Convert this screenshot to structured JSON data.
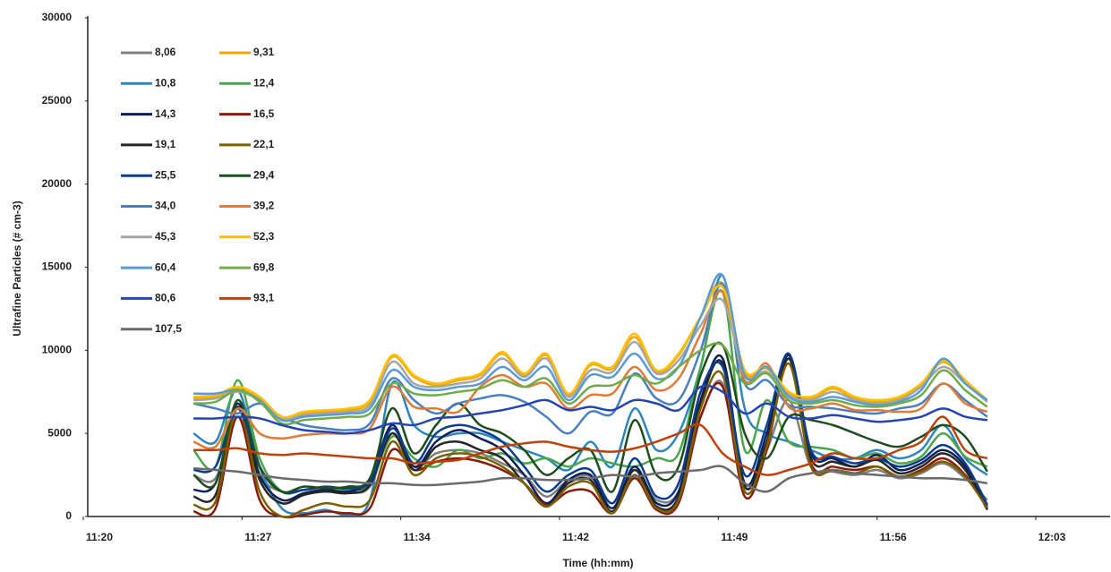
{
  "chart_data": {
    "type": "line",
    "x_label": "Time (hh:mm)",
    "y_label": "Ultrafine Particles (# cm-3)",
    "x": [
      685,
      686,
      687,
      688,
      689,
      690,
      691,
      692,
      693,
      694,
      695,
      696,
      697,
      698,
      699,
      700,
      701,
      702,
      703,
      704,
      705,
      706,
      707,
      708,
      709,
      710,
      711,
      712,
      713,
      714,
      715,
      716,
      717,
      718,
      719,
      720,
      721
    ],
    "xlim": [
      680,
      723.2
    ],
    "xticks": [
      {
        "value": 680,
        "label": "11:20"
      },
      {
        "value": 687.2,
        "label": "11:27"
      },
      {
        "value": 694.4,
        "label": "11:34"
      },
      {
        "value": 701.6,
        "label": "11:42"
      },
      {
        "value": 708.8,
        "label": "11:49"
      },
      {
        "value": 716,
        "label": "11:56"
      },
      {
        "value": 723.2,
        "label": "12:03"
      }
    ],
    "ylim": [
      0,
      30000
    ],
    "yticks": [
      0,
      5000,
      10000,
      15000,
      20000,
      25000,
      30000
    ],
    "grid": false,
    "legend": "upper left",
    "series": [
      {
        "name": "8,06",
        "color": "#7f7f7f",
        "values": [
          2500,
          2300,
          6000,
          2500,
          1500,
          1600,
          1700,
          1500,
          1800,
          5000,
          3000,
          3800,
          4000,
          3800,
          3200,
          2500,
          1200,
          2200,
          2400,
          800,
          2800,
          1000,
          1500,
          6000,
          8000,
          1800,
          4000,
          7000,
          3000,
          2700,
          2500,
          2800,
          2300,
          2600,
          3200,
          2300,
          1000
        ]
      },
      {
        "name": "9,31",
        "color": "#f0a800",
        "values": [
          7100,
          7200,
          7700,
          7100,
          6000,
          6200,
          6300,
          6400,
          6900,
          9600,
          8400,
          7900,
          8200,
          8500,
          9800,
          8500,
          9700,
          7300,
          9100,
          8900,
          10800,
          8700,
          9700,
          12000,
          14000,
          8700,
          8900,
          7400,
          7100,
          7700,
          7100,
          6900,
          7100,
          7900,
          9300,
          8100,
          6900
        ]
      },
      {
        "name": "10,8",
        "color": "#2e86c1",
        "values": [
          5000,
          4500,
          7600,
          3000,
          500,
          200,
          400,
          100,
          1000,
          8000,
          5500,
          4800,
          5000,
          5000,
          4500,
          4000,
          3500,
          2800,
          4500,
          3000,
          6500,
          4000,
          5000,
          9000,
          14500,
          6500,
          5000,
          4500,
          4000,
          3500,
          3500,
          4000,
          3500,
          4000,
          5500,
          3500,
          2500
        ]
      },
      {
        "name": "12,4",
        "color": "#4ca64c",
        "values": [
          4000,
          3000,
          8200,
          3500,
          1500,
          1600,
          1800,
          1600,
          2000,
          4800,
          3500,
          3000,
          4000,
          3500,
          3800,
          3200,
          3500,
          3000,
          3500,
          3200,
          3000,
          3500,
          3800,
          9000,
          13500,
          4000,
          7000,
          4500,
          4200,
          4000,
          3500,
          3800,
          3200,
          3600,
          5000,
          3600,
          3000
        ]
      },
      {
        "name": "14,3",
        "color": "#0b1f5c",
        "values": [
          1600,
          2000,
          6800,
          2500,
          1000,
          1400,
          1600,
          1500,
          2200,
          5500,
          3000,
          4500,
          5200,
          4700,
          4000,
          2500,
          800,
          2200,
          2500,
          500,
          3000,
          800,
          1500,
          7000,
          9500,
          2000,
          5000,
          9700,
          3800,
          3500,
          3000,
          3700,
          2800,
          3200,
          4000,
          3000,
          500
        ]
      },
      {
        "name": "16,5",
        "color": "#8b1a0a",
        "values": [
          300,
          500,
          6000,
          1000,
          0,
          100,
          300,
          200,
          500,
          4000,
          2800,
          3300,
          3500,
          3300,
          2800,
          2000,
          700,
          1500,
          1500,
          200,
          2300,
          400,
          800,
          6000,
          7800,
          1200,
          4000,
          9500,
          3200,
          3000,
          2800,
          3000,
          2400,
          2800,
          3500,
          2500,
          600
        ]
      },
      {
        "name": "19,1",
        "color": "#262626",
        "values": [
          1200,
          1300,
          6600,
          2200,
          800,
          1300,
          1500,
          1400,
          1900,
          5000,
          2800,
          4200,
          4500,
          4000,
          3500,
          2000,
          600,
          2000,
          2200,
          300,
          2800,
          600,
          1200,
          6800,
          9200,
          1800,
          4500,
          9500,
          3500,
          3300,
          3000,
          3400,
          2600,
          3000,
          3800,
          2800,
          400
        ]
      },
      {
        "name": "22,1",
        "color": "#7a6000",
        "values": [
          700,
          900,
          6500,
          1500,
          0,
          400,
          800,
          600,
          1000,
          4500,
          2500,
          3500,
          3800,
          3600,
          3000,
          2000,
          600,
          1800,
          2000,
          200,
          2500,
          500,
          1000,
          6500,
          8500,
          1500,
          4200,
          9200,
          3000,
          2800,
          2600,
          3000,
          2400,
          2700,
          3300,
          2400,
          500
        ]
      },
      {
        "name": "25,5",
        "color": "#0a3d8f",
        "values": [
          2800,
          3000,
          6500,
          3000,
          1500,
          1600,
          1800,
          1700,
          2100,
          5300,
          3200,
          5000,
          5500,
          5200,
          4500,
          3000,
          1500,
          2500,
          2800,
          800,
          3500,
          1200,
          2000,
          7500,
          9000,
          2500,
          5500,
          9800,
          4000,
          3600,
          3200,
          3500,
          3000,
          3400,
          4300,
          3200,
          700
        ]
      },
      {
        "name": "29,4",
        "color": "#1e4d1e",
        "values": [
          2500,
          2000,
          7000,
          3000,
          1500,
          1800,
          1700,
          1800,
          2300,
          6500,
          3800,
          5500,
          6800,
          5500,
          5000,
          4000,
          2500,
          3500,
          4000,
          1500,
          5800,
          2500,
          3000,
          8500,
          10300,
          5000,
          3500,
          6000,
          5800,
          5500,
          5000,
          4500,
          4200,
          4800,
          5500,
          4800,
          2700
        ]
      },
      {
        "name": "34,0",
        "color": "#4a7fc0",
        "values": [
          6800,
          6500,
          6200,
          6800,
          6000,
          5500,
          5300,
          5200,
          5600,
          8300,
          7000,
          6200,
          6800,
          7100,
          7300,
          6900,
          6000,
          5000,
          6300,
          6200,
          8600,
          7100,
          7000,
          10000,
          14000,
          8000,
          8200,
          6700,
          6600,
          6500,
          6300,
          6200,
          6500,
          6800,
          8000,
          7000,
          6000
        ]
      },
      {
        "name": "39,2",
        "color": "#e07b39",
        "values": [
          4500,
          4200,
          6500,
          5000,
          4700,
          4900,
          5000,
          5000,
          5300,
          7800,
          6600,
          6500,
          6300,
          7800,
          8500,
          7800,
          8000,
          6500,
          7300,
          7400,
          9000,
          7600,
          8300,
          11000,
          13500,
          8200,
          9200,
          6600,
          6500,
          6800,
          6400,
          6400,
          6300,
          6500,
          8000,
          6800,
          6300
        ]
      },
      {
        "name": "45,3",
        "color": "#a6a6a6",
        "values": [
          7000,
          7100,
          7500,
          7000,
          5900,
          6100,
          6200,
          6300,
          6700,
          9300,
          8000,
          7800,
          8000,
          8300,
          9500,
          8400,
          9500,
          7200,
          8800,
          8700,
          10500,
          8600,
          9400,
          11500,
          13000,
          8500,
          8700,
          7300,
          7000,
          7500,
          7000,
          6800,
          7000,
          7800,
          9000,
          8000,
          6900
        ]
      },
      {
        "name": "52,3",
        "color": "#ffc000",
        "values": [
          7200,
          7300,
          7800,
          7200,
          6000,
          6300,
          6400,
          6500,
          7000,
          9700,
          8500,
          8000,
          8300,
          8600,
          9900,
          8600,
          9800,
          7400,
          9200,
          9000,
          11000,
          8800,
          9800,
          12000,
          13800,
          8800,
          9000,
          7500,
          7200,
          7800,
          7200,
          7000,
          7200,
          8000,
          9400,
          8200,
          7000
        ]
      },
      {
        "name": "60,4",
        "color": "#5b9bd5",
        "values": [
          7400,
          7400,
          7600,
          7000,
          5800,
          6000,
          6100,
          6200,
          6500,
          8800,
          7800,
          7600,
          7800,
          8000,
          9000,
          8200,
          9000,
          7000,
          8500,
          8400,
          9800,
          8300,
          9000,
          12000,
          14500,
          8500,
          9000,
          7200,
          6900,
          7200,
          6900,
          6700,
          6900,
          7600,
          9500,
          8000,
          7000
        ]
      },
      {
        "name": "69,8",
        "color": "#70ad47",
        "values": [
          6800,
          6900,
          7600,
          6900,
          5600,
          5800,
          5900,
          6000,
          6200,
          8000,
          7400,
          7300,
          7500,
          7700,
          8200,
          7800,
          8300,
          6800,
          7800,
          7900,
          8500,
          8000,
          9000,
          10000,
          10300,
          8000,
          8600,
          7000,
          6800,
          7000,
          6700,
          6600,
          6800,
          7300,
          8800,
          7600,
          6600
        ]
      },
      {
        "name": "80,6",
        "color": "#2544b5",
        "values": [
          5900,
          5900,
          6000,
          5900,
          5500,
          5200,
          5100,
          5000,
          5200,
          5600,
          5500,
          5900,
          6000,
          6200,
          6400,
          6700,
          7000,
          6400,
          6600,
          6400,
          7000,
          6800,
          6400,
          7800,
          7500,
          6200,
          6800,
          6000,
          5900,
          6100,
          5900,
          5700,
          5800,
          6000,
          6500,
          6000,
          5800
        ]
      },
      {
        "name": "93,1",
        "color": "#c0400a",
        "values": [
          4000,
          4000,
          4100,
          3800,
          3700,
          3800,
          3700,
          3600,
          3500,
          3500,
          3200,
          3300,
          3400,
          3800,
          4200,
          4400,
          4500,
          4200,
          4000,
          3900,
          4100,
          4500,
          5000,
          5500,
          3800,
          3000,
          2500,
          2800,
          3200,
          3800,
          3500,
          3500,
          4000,
          4500,
          6000,
          4000,
          3500
        ]
      },
      {
        "name": "107,5",
        "color": "#6b6b6b",
        "values": [
          2900,
          2800,
          2700,
          2500,
          2300,
          2200,
          2100,
          2100,
          2000,
          2000,
          1900,
          1900,
          2000,
          2100,
          2300,
          2300,
          2200,
          2200,
          2300,
          2500,
          2400,
          2600,
          2700,
          2800,
          3000,
          2000,
          1500,
          2300,
          2600,
          2800,
          2600,
          2500,
          2400,
          2300,
          2300,
          2200,
          2000
        ]
      }
    ]
  }
}
